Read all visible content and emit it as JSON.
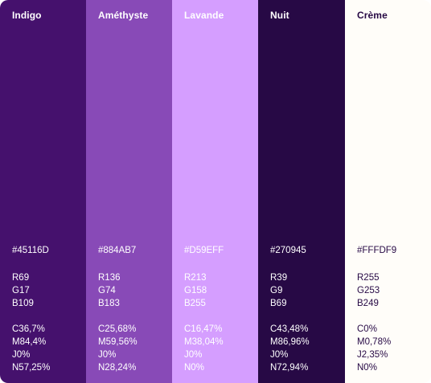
{
  "palette": {
    "swatches": [
      {
        "name": "Indigo",
        "hex": "#45116D",
        "r": "R69",
        "g": "G17",
        "b": "B109",
        "c": "C36,7%",
        "m": "M84,4%",
        "j": "J0%",
        "n": "N57,25%",
        "bg": "#45116D",
        "fg": "#FFFFFF"
      },
      {
        "name": "Améthyste",
        "hex": "#884AB7",
        "r": "R136",
        "g": "G74",
        "b": "B183",
        "c": "C25,68%",
        "m": "M59,56%",
        "j": "J0%",
        "n": "N28,24%",
        "bg": "#884AB7",
        "fg": "#FFFFFF"
      },
      {
        "name": "Lavande",
        "hex": "#D59EFF",
        "r": "R213",
        "g": "G158",
        "b": "B255",
        "c": "C16,47%",
        "m": "M38,04%",
        "j": "J0%",
        "n": "N0%",
        "bg": "#D59EFF",
        "fg": "#FFFFFF"
      },
      {
        "name": "Nuit",
        "hex": "#270945",
        "r": "R39",
        "g": "G9",
        "b": "B69",
        "c": "C43,48%",
        "m": "M86,96%",
        "j": "J0%",
        "n": "N72,94%",
        "bg": "#270945",
        "fg": "#FFFFFF"
      },
      {
        "name": "Crème",
        "hex": "#FFFDF9",
        "r": "R255",
        "g": "G253",
        "b": "B249",
        "c": "C0%",
        "m": "M0,78%",
        "j": "J2,35%",
        "n": "N0%",
        "bg": "#FFFDF9",
        "fg": "#270945"
      }
    ]
  }
}
